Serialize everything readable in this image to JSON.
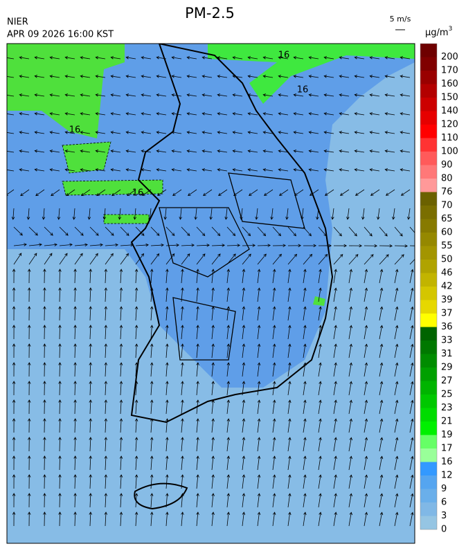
{
  "header": {
    "title": "PM-2.5",
    "agency": "NIER",
    "datetime": "APR 09 2026 16:00 KST",
    "wind_scale": "5 m/s"
  },
  "colorbar": {
    "unit": {
      "base": "μg/m",
      "superscript": "3"
    },
    "labels": [
      200,
      170,
      160,
      150,
      140,
      120,
      110,
      100,
      90,
      80,
      76,
      70,
      65,
      60,
      55,
      50,
      46,
      42,
      39,
      37,
      36,
      33,
      31,
      29,
      27,
      25,
      23,
      21,
      19,
      17,
      16,
      12,
      9,
      6,
      3,
      0
    ],
    "colors": [
      "#6e0000",
      "#800000",
      "#990000",
      "#b30000",
      "#cc0000",
      "#e60000",
      "#ff0000",
      "#ff3333",
      "#ff5a5a",
      "#ff7878",
      "#ff9999",
      "#6b6100",
      "#7a6e00",
      "#877a00",
      "#958800",
      "#a39500",
      "#b0a300",
      "#c2b400",
      "#d4c600",
      "#e6d800",
      "#ffff00",
      "#006400",
      "#007800",
      "#008c00",
      "#00a000",
      "#00b400",
      "#00c800",
      "#00dc00",
      "#00f000",
      "#66ff66",
      "#99ff99",
      "#3399ff",
      "#55a5f0",
      "#6aafea",
      "#80b8e6",
      "#95c5e3"
    ]
  },
  "map": {
    "contour_labels": [
      "16",
      "16",
      "16",
      "16"
    ]
  }
}
